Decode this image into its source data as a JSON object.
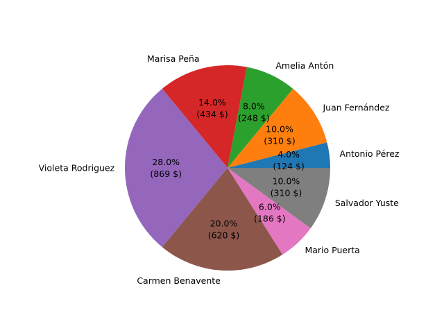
{
  "chart_data": {
    "type": "pie",
    "title": "",
    "start_angle_deg": 0,
    "direction": "counterclockwise",
    "slices": [
      {
        "label": "Antonio Pérez",
        "value": 124,
        "pct_text": "4.0%",
        "value_text": "(124 $)",
        "color": "#1f77b4"
      },
      {
        "label": "Juan Fernández",
        "value": 310,
        "pct_text": "10.0%",
        "value_text": "(310 $)",
        "color": "#ff7f0e"
      },
      {
        "label": "Amelia Antón",
        "value": 248,
        "pct_text": "8.0%",
        "value_text": "(248 $)",
        "color": "#2ca02c"
      },
      {
        "label": "Marisa Peña",
        "value": 434,
        "pct_text": "14.0%",
        "value_text": "(434 $)",
        "color": "#d62728"
      },
      {
        "label": "Violeta Rodriguez",
        "value": 869,
        "pct_text": "28.0%",
        "value_text": "(869 $)",
        "color": "#9467bd"
      },
      {
        "label": "Carmen Benavente",
        "value": 620,
        "pct_text": "20.0%",
        "value_text": "(620 $)",
        "color": "#8c564b"
      },
      {
        "label": "Mario Puerta",
        "value": 186,
        "pct_text": "6.0%",
        "value_text": "(186 $)",
        "color": "#e377c2"
      },
      {
        "label": "Salvador Yuste",
        "value": 310,
        "pct_text": "10.0%",
        "value_text": "(310 $)",
        "color": "#7f7f7f"
      }
    ]
  }
}
